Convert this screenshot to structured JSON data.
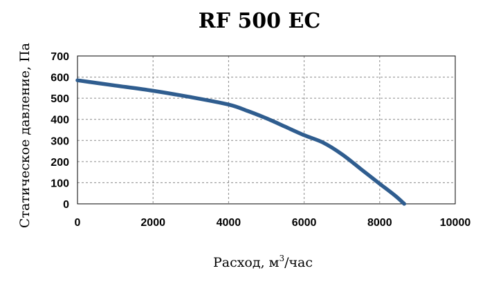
{
  "chart_data": {
    "type": "line",
    "title": "RF 500 EC",
    "xlabel_main": "Расход, м",
    "xlabel_sup": "3",
    "xlabel_tail": "/час",
    "ylabel": "Статическое давление, Па",
    "xlim": [
      0,
      10000
    ],
    "ylim": [
      0,
      700
    ],
    "x_ticks": [
      0,
      2000,
      4000,
      6000,
      8000,
      10000
    ],
    "y_ticks": [
      0,
      100,
      200,
      300,
      400,
      500,
      600,
      700
    ],
    "grid": true,
    "line_color": "#2f5d8f",
    "series": [
      {
        "x": [
          0,
          1000,
          2000,
          3000,
          4000,
          4500,
          5000,
          5500,
          6000,
          6500,
          7000,
          7500,
          8000,
          8400,
          8650
        ],
        "y": [
          585,
          560,
          535,
          505,
          470,
          440,
          405,
          365,
          325,
          290,
          235,
          165,
          95,
          40,
          0
        ]
      }
    ]
  }
}
